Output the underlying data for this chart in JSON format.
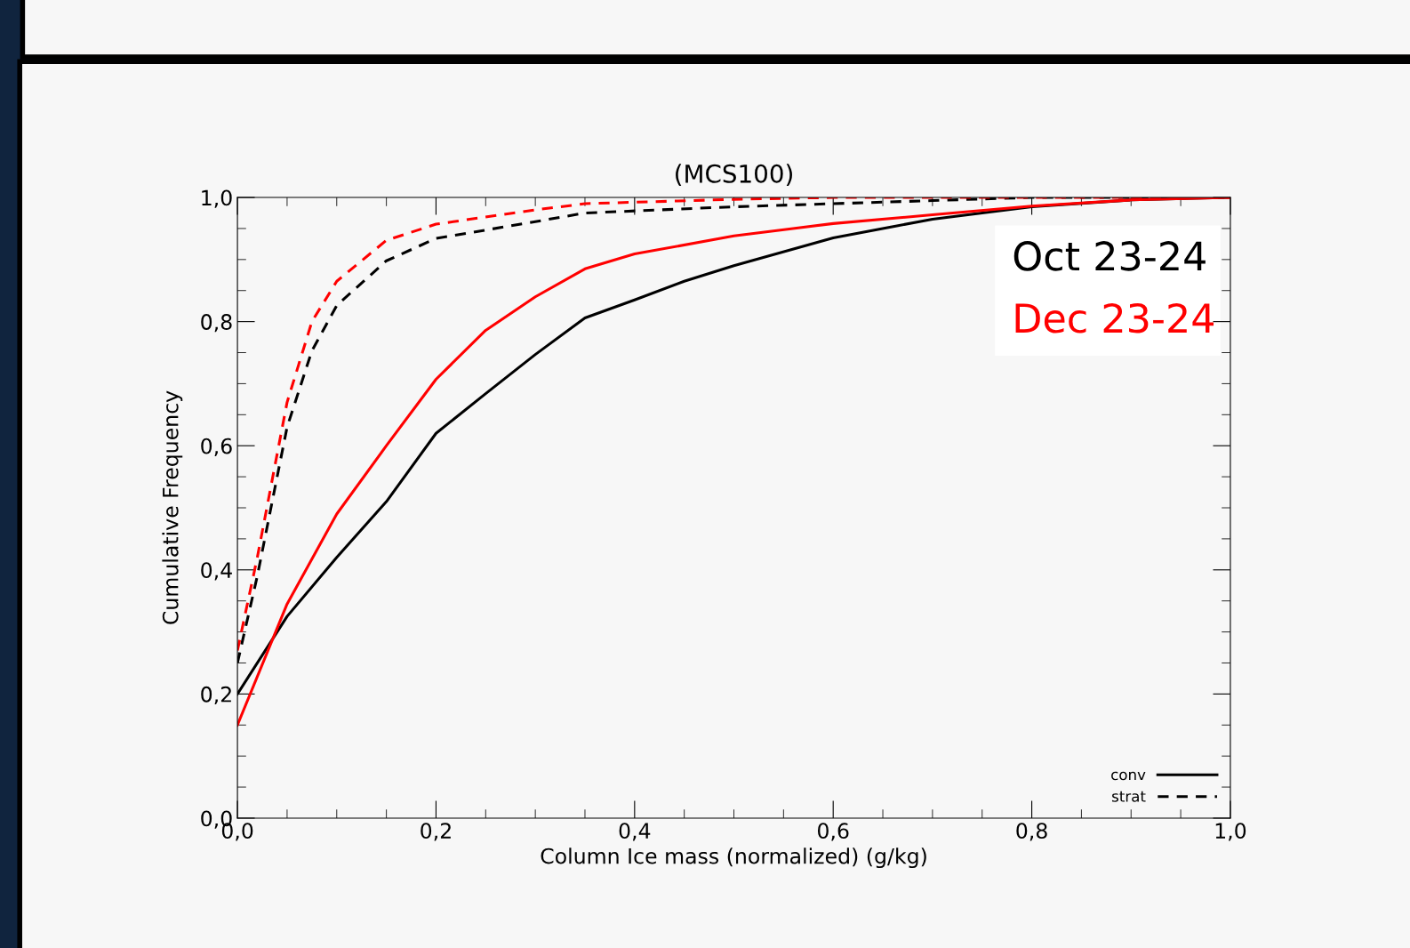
{
  "chart_data": {
    "type": "line",
    "title": "(MCS100)",
    "xlabel": "Column Ice mass (normalized) (g/kg)",
    "ylabel": "Cumulative Frequency",
    "xlim": [
      0,
      1
    ],
    "ylim": [
      0,
      1
    ],
    "xticks": [
      {
        "value": 0,
        "label": "0,0"
      },
      {
        "value": 0.2,
        "label": "0,2"
      },
      {
        "value": 0.4,
        "label": "0,4"
      },
      {
        "value": 0.6,
        "label": "0,6"
      },
      {
        "value": 0.8,
        "label": "0,8"
      },
      {
        "value": 1,
        "label": "1,0"
      }
    ],
    "yticks": [
      {
        "value": 0,
        "label": "0,0"
      },
      {
        "value": 0.2,
        "label": "0,2"
      },
      {
        "value": 0.4,
        "label": "0,4"
      },
      {
        "value": 0.6,
        "label": "0,6"
      },
      {
        "value": 0.8,
        "label": "0,8"
      },
      {
        "value": 1,
        "label": "1,0"
      }
    ],
    "grid": false,
    "legend": "bottom right",
    "marker": "none",
    "annotations": [
      "Oct 23-24",
      "Dec 23-24"
    ],
    "series": [
      {
        "name": "conv",
        "color": "#000000",
        "line_style": "solid",
        "x": [
          0,
          0.05,
          0.1,
          0.15,
          0.2,
          0.25,
          0.3,
          0.35,
          0.4,
          0.45,
          0.5,
          0.6,
          0.7,
          0.8,
          0.9,
          1.0
        ],
        "values": [
          0.2,
          0.325,
          0.42,
          0.51,
          0.62,
          0.684,
          0.747,
          0.806,
          0.835,
          0.865,
          0.89,
          0.935,
          0.965,
          0.985,
          0.996,
          1.0
        ]
      },
      {
        "name": "strat",
        "color": "#000000",
        "line_style": "dashed",
        "x": [
          0,
          0.02,
          0.05,
          0.075,
          0.1,
          0.15,
          0.2,
          0.3,
          0.35,
          0.5,
          0.6,
          0.7,
          0.8,
          1.0
        ],
        "values": [
          0.25,
          0.39,
          0.63,
          0.753,
          0.826,
          0.898,
          0.934,
          0.961,
          0.975,
          0.985,
          0.99,
          0.995,
          1.0,
          1.0
        ]
      },
      {
        "color": "#ff0000",
        "line_style": "solid",
        "x": [
          0,
          0.05,
          0.1,
          0.15,
          0.2,
          0.25,
          0.3,
          0.35,
          0.4,
          0.5,
          0.6,
          0.7,
          0.8,
          0.9,
          1.0
        ],
        "values": [
          0.15,
          0.345,
          0.49,
          0.6,
          0.707,
          0.786,
          0.84,
          0.885,
          0.909,
          0.938,
          0.958,
          0.972,
          0.986,
          0.996,
          1.0
        ]
      },
      {
        "color": "#ff0000",
        "line_style": "dashed",
        "x": [
          0,
          0.02,
          0.05,
          0.075,
          0.1,
          0.15,
          0.2,
          0.3,
          0.35,
          0.5,
          0.6,
          1.0
        ],
        "values": [
          0.27,
          0.42,
          0.67,
          0.8,
          0.865,
          0.931,
          0.957,
          0.98,
          0.99,
          0.997,
          1.0,
          1.0
        ]
      }
    ]
  }
}
